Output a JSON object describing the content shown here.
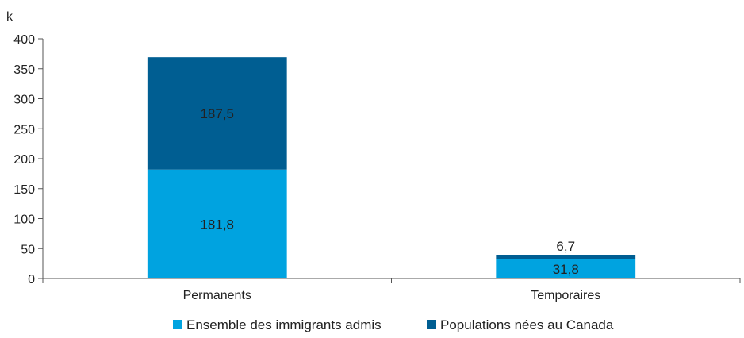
{
  "chart_data": {
    "type": "bar",
    "stacked": true,
    "categories": [
      "Permanents",
      "Temporaires"
    ],
    "series": [
      {
        "name": "Ensemble des immigrants admis",
        "values": [
          181.8,
          31.8
        ],
        "labels": [
          "181,8",
          "31,8"
        ],
        "color": "#00a3e0"
      },
      {
        "name": "Populations nées au Canada",
        "values": [
          187.5,
          6.7
        ],
        "labels": [
          "187,5",
          "6,7"
        ],
        "color": "#005e92"
      }
    ],
    "ylabel": "k",
    "ylim": [
      0,
      400
    ],
    "yticks": [
      0,
      50,
      100,
      150,
      200,
      250,
      300,
      350,
      400
    ],
    "grid": false,
    "legend_position": "bottom"
  }
}
